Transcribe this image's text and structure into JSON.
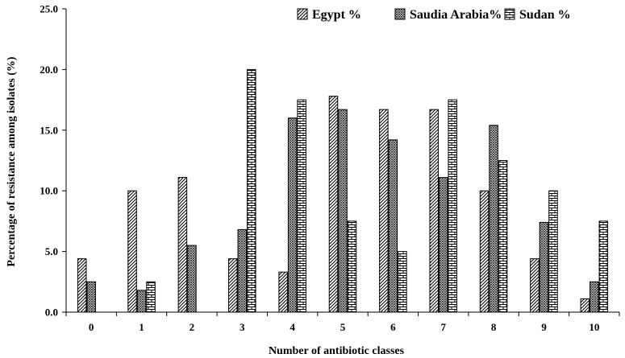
{
  "chart_data": {
    "type": "bar",
    "title": "",
    "xlabel": "Number of antibiotic classes",
    "ylabel": "Percentage of resistance among isolates (%)",
    "categories": [
      "0",
      "1",
      "2",
      "3",
      "4",
      "5",
      "6",
      "7",
      "8",
      "9",
      "10"
    ],
    "ylim": [
      0,
      25
    ],
    "yticks": [
      "0.0",
      "5.0",
      "10.0",
      "15.0",
      "20.0",
      "25.0"
    ],
    "legend_position": "top-right",
    "grid": false,
    "series": [
      {
        "name": "Egypt %",
        "pattern": "diagonal-hatch",
        "values": [
          4.4,
          10.0,
          11.1,
          4.4,
          3.3,
          17.8,
          16.7,
          16.7,
          10.0,
          4.4,
          1.1
        ]
      },
      {
        "name": "Saudia Arabia%",
        "pattern": "crosshatch",
        "values": [
          2.5,
          1.8,
          5.5,
          6.8,
          16.0,
          16.7,
          14.2,
          11.1,
          15.4,
          7.4,
          2.5
        ]
      },
      {
        "name": "Sudan %",
        "pattern": "brick",
        "values": [
          0.0,
          2.5,
          0.0,
          20.0,
          17.5,
          7.5,
          5.0,
          17.5,
          12.5,
          10.0,
          7.5
        ]
      }
    ]
  }
}
